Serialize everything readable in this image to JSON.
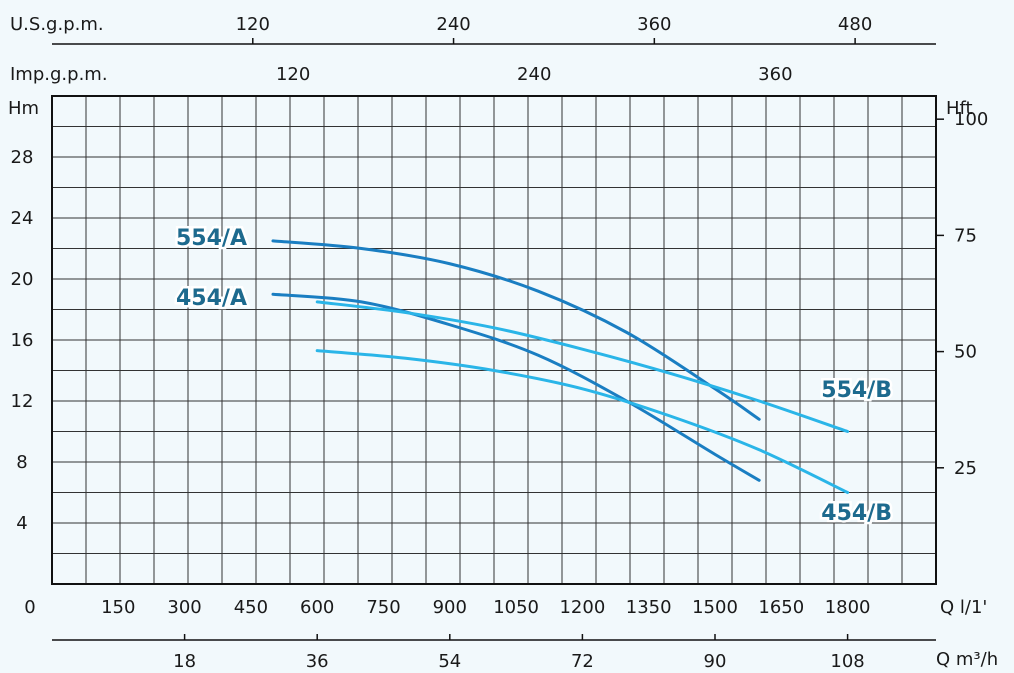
{
  "chart_data": {
    "type": "line",
    "title": "",
    "axes": {
      "bottom_primary": {
        "unit": "Q l/1'",
        "ticks": [
          "0",
          "150",
          "300",
          "450",
          "600",
          "750",
          "900",
          "1050",
          "1200",
          "1350",
          "1500",
          "1650",
          "1800"
        ],
        "range": [
          0,
          2000
        ]
      },
      "bottom_secondary": {
        "unit": "Q m³/h",
        "ticks": [
          "18",
          "36",
          "54",
          "72",
          "90",
          "108"
        ]
      },
      "top_primary": {
        "unit": "U.S.g.p.m.",
        "ticks": [
          "120",
          "240",
          "360",
          "480"
        ]
      },
      "top_secondary": {
        "unit": "Imp.g.p.m.",
        "ticks": [
          "120",
          "240",
          "360"
        ]
      },
      "left": {
        "unit": "Hm",
        "ticks": [
          "4",
          "8",
          "12",
          "16",
          "20",
          "24",
          "28"
        ],
        "range": [
          0,
          32
        ]
      },
      "right": {
        "unit": "Hft",
        "ticks": [
          "25",
          "50",
          "75",
          "100"
        ]
      }
    },
    "grid": true,
    "series": [
      {
        "name": "554/A",
        "color": "#1a7ec2",
        "x": [
          500,
          700,
          900,
          1100,
          1300,
          1500,
          1600
        ],
        "y": [
          22.5,
          22.0,
          21.0,
          19.2,
          16.5,
          12.8,
          10.8
        ]
      },
      {
        "name": "454/A",
        "color": "#1a7ec2",
        "x": [
          500,
          700,
          900,
          1100,
          1300,
          1500,
          1600
        ],
        "y": [
          19.0,
          18.5,
          17.0,
          15.0,
          12.0,
          8.5,
          6.8
        ]
      },
      {
        "name": "554/B",
        "color": "#2ab5e8",
        "x": [
          600,
          800,
          1000,
          1200,
          1400,
          1600,
          1800
        ],
        "y": [
          18.5,
          17.8,
          16.8,
          15.4,
          13.8,
          12.0,
          10.0
        ]
      },
      {
        "name": "454/B",
        "color": "#2ab5e8",
        "x": [
          600,
          800,
          1000,
          1200,
          1400,
          1600,
          1800
        ],
        "y": [
          15.3,
          14.8,
          14.0,
          12.8,
          11.0,
          8.8,
          6.0
        ]
      }
    ]
  }
}
